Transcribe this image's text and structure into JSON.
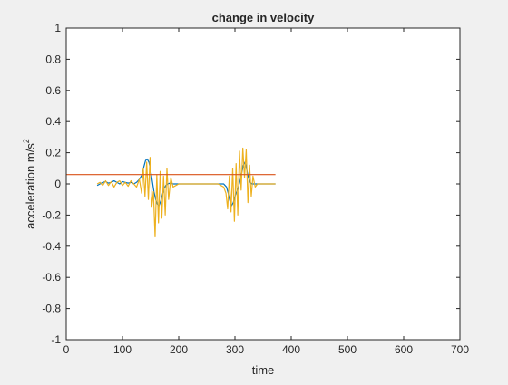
{
  "chart_data": {
    "type": "line",
    "title": "change in velocity",
    "xlabel": "time",
    "ylabel": "acceleration m/s",
    "ylabel_superscript": "2",
    "xlim": [
      0,
      700
    ],
    "ylim": [
      -1,
      1
    ],
    "xticks": [
      0,
      100,
      200,
      300,
      400,
      500,
      600,
      700
    ],
    "yticks": [
      -1,
      -0.8,
      -0.6,
      -0.4,
      -0.2,
      0,
      0.2,
      0.4,
      0.6,
      0.8,
      1
    ],
    "ytick_labels": [
      "-1",
      "-0.8",
      "-0.6",
      "-0.4",
      "-0.2",
      "0",
      "0.2",
      "0.4",
      "0.6",
      "0.8",
      "1"
    ],
    "grid": false,
    "legend": "none",
    "series": [
      {
        "color": "#0072bd",
        "x": [
          55,
          60,
          65,
          70,
          75,
          80,
          85,
          90,
          95,
          100,
          105,
          110,
          115,
          120,
          125,
          130,
          135,
          138,
          141,
          144,
          147,
          150,
          153,
          156,
          159,
          162,
          165,
          168,
          171,
          174,
          177,
          180,
          185,
          190,
          200,
          210,
          220,
          230,
          240,
          250,
          260,
          270,
          280,
          285,
          288,
          291,
          294,
          297,
          300,
          303,
          306,
          309,
          312,
          315,
          318,
          321,
          324,
          327,
          330,
          335,
          340,
          350,
          360,
          372
        ],
        "y": [
          -0.01,
          0.0,
          0.01,
          0.015,
          0.005,
          0.01,
          0.02,
          0.01,
          0.0,
          0.015,
          0.01,
          0.005,
          0.01,
          0.0,
          0.01,
          0.03,
          0.06,
          0.11,
          0.15,
          0.16,
          0.14,
          0.09,
          0.02,
          -0.05,
          -0.1,
          -0.13,
          -0.14,
          -0.11,
          -0.07,
          -0.03,
          -0.01,
          0.0,
          0.005,
          0.0,
          0.0,
          0.0,
          0.0,
          0.0,
          0.0,
          0.0,
          0.0,
          0.0,
          0.0,
          -0.02,
          -0.06,
          -0.11,
          -0.14,
          -0.12,
          -0.08,
          -0.05,
          -0.02,
          0.02,
          0.07,
          0.12,
          0.14,
          0.09,
          0.04,
          0.01,
          0.0,
          0.0,
          0.0,
          0.0,
          0.0,
          0.0
        ]
      },
      {
        "color": "#edb120",
        "x": [
          55,
          60,
          65,
          70,
          75,
          80,
          85,
          90,
          95,
          100,
          105,
          110,
          115,
          120,
          125,
          130,
          134,
          137,
          140,
          143,
          146,
          149,
          152,
          155,
          158,
          161,
          164,
          167,
          170,
          173,
          176,
          179,
          182,
          186,
          190,
          200,
          210,
          220,
          230,
          240,
          250,
          260,
          270,
          280,
          284,
          287,
          290,
          293,
          296,
          299,
          302,
          305,
          308,
          311,
          314,
          317,
          320,
          323,
          326,
          329,
          332,
          336,
          340,
          350,
          360,
          372
        ],
        "y": [
          0.0,
          0.01,
          -0.01,
          0.02,
          -0.01,
          0.015,
          -0.02,
          0.01,
          0.02,
          -0.01,
          0.01,
          -0.015,
          0.02,
          0.0,
          -0.02,
          0.03,
          -0.06,
          0.1,
          -0.08,
          0.14,
          -0.1,
          0.17,
          -0.15,
          -0.05,
          -0.34,
          0.06,
          -0.25,
          0.08,
          -0.22,
          0.05,
          -0.2,
          0.1,
          -0.1,
          0.04,
          -0.02,
          0.0,
          0.0,
          0.0,
          0.0,
          0.0,
          0.0,
          0.0,
          0.0,
          -0.02,
          -0.06,
          -0.16,
          0.05,
          -0.18,
          0.1,
          -0.24,
          0.13,
          -0.2,
          0.21,
          -0.04,
          0.23,
          0.04,
          0.22,
          -0.12,
          0.12,
          -0.08,
          0.05,
          -0.02,
          0.0,
          0.0,
          0.0,
          0.0
        ]
      },
      {
        "color": "#d95319",
        "x": [
          0,
          372
        ],
        "y": [
          0.06,
          0.06
        ]
      }
    ]
  }
}
